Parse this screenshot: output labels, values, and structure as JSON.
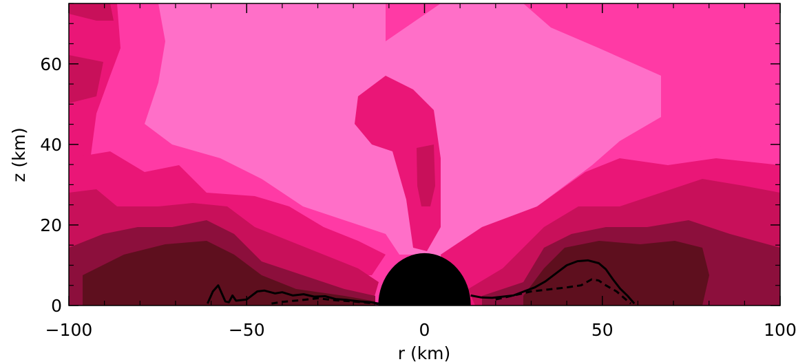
{
  "chart_data": {
    "type": "heatmap",
    "title": "",
    "xlabel": "r (km)",
    "ylabel": "z (km)",
    "xlim": [
      -100,
      100
    ],
    "ylim": [
      0,
      75
    ],
    "xticks": [
      -100,
      -50,
      0,
      50,
      100
    ],
    "xtick_labels": [
      "−100",
      "−50",
      "0",
      "50",
      "100"
    ],
    "yticks": [
      0,
      20,
      40,
      60
    ],
    "ytick_labels": [
      "0",
      "20",
      "40",
      "60"
    ],
    "grid": false,
    "colormap_levels": [
      "#5e0f1e",
      "#8c0f3c",
      "#c8105a",
      "#ea1677",
      "#ff3aa5",
      "#ff6fc8"
    ],
    "central_object": {
      "type": "black-hemisphere",
      "radius_km": 13
    },
    "series": [
      {
        "style": "solid",
        "color": "#000000",
        "points": [
          [
            -61,
            0.5
          ],
          [
            -59.5,
            3.5
          ],
          [
            -58,
            5
          ],
          [
            -57,
            3
          ],
          [
            -56,
            1
          ],
          [
            -55,
            0.8
          ],
          [
            -54,
            2.5
          ],
          [
            -53,
            1.2
          ],
          [
            -50,
            1.5
          ],
          [
            -47,
            3.5
          ],
          [
            -45,
            3.7
          ],
          [
            -42,
            3
          ],
          [
            -40,
            3.3
          ],
          [
            -37,
            2.5
          ],
          [
            -34,
            2.8
          ],
          [
            -31,
            2.2
          ],
          [
            -28,
            2.3
          ],
          [
            -25,
            1.6
          ],
          [
            -22,
            1.4
          ],
          [
            -18,
            1
          ],
          [
            -15,
            0.8
          ],
          [
            -13,
            0.5
          ]
        ]
      },
      {
        "style": "solid",
        "color": "#000000",
        "points": [
          [
            13,
            2.5
          ],
          [
            16,
            2
          ],
          [
            19,
            1.9
          ],
          [
            22,
            2.2
          ],
          [
            25,
            2.5
          ],
          [
            28,
            3.5
          ],
          [
            31,
            4.5
          ],
          [
            34,
            6
          ],
          [
            37,
            8
          ],
          [
            40,
            10
          ],
          [
            43,
            11
          ],
          [
            46,
            11.2
          ],
          [
            49,
            10.5
          ],
          [
            51,
            9
          ],
          [
            53,
            6.5
          ],
          [
            55,
            4.2
          ],
          [
            57,
            2.5
          ],
          [
            59,
            0.5
          ]
        ]
      },
      {
        "style": "dashed",
        "color": "#000000",
        "points": [
          [
            -43,
            0.5
          ],
          [
            -40,
            0.9
          ],
          [
            -35,
            1.3
          ],
          [
            -30,
            1.8
          ],
          [
            -25,
            1.3
          ],
          [
            -20,
            1
          ],
          [
            -15,
            0.6
          ],
          [
            -13,
            0.4
          ]
        ]
      },
      {
        "style": "dashed",
        "color": "#000000",
        "points": [
          [
            20,
            1.5
          ],
          [
            25,
            2.5
          ],
          [
            30,
            3.5
          ],
          [
            35,
            4
          ],
          [
            40,
            4.5
          ],
          [
            44,
            5
          ],
          [
            47,
            6.5
          ],
          [
            49,
            6.2
          ],
          [
            51,
            5
          ],
          [
            54,
            3.5
          ],
          [
            57,
            1.2
          ],
          [
            58,
            0.5
          ]
        ]
      }
    ]
  }
}
